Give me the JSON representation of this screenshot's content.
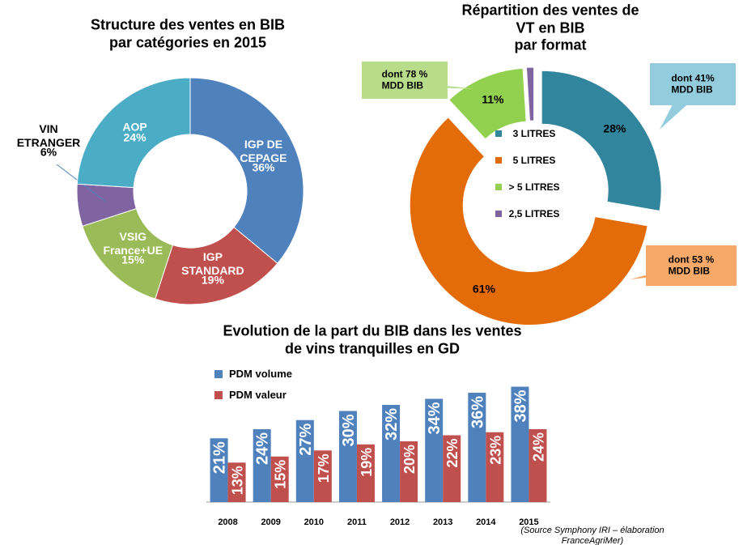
{
  "chart_data": [
    {
      "type": "donut",
      "title": "Structure des ventes en BIB\npar catégories en 2015",
      "categories": [
        "IGP DE\nCEPAGE",
        "IGP\nSTANDARD",
        "VSIG\nFrance+UE",
        "VIN\nETRANGER",
        "AOP"
      ],
      "values": [
        36,
        19,
        15,
        6,
        24
      ],
      "value_labels": [
        "36%",
        "19%",
        "15%",
        "6%",
        "24%"
      ],
      "colors": [
        "#4f81bd",
        "#c0504d",
        "#9bbb59",
        "#8064a2",
        "#4bacc6"
      ]
    },
    {
      "type": "donut",
      "title": "Répartition des ventes de VT en BIB\npar format",
      "categories": [
        "3 LITRES",
        "5 LITRES",
        "> 5 LITRES",
        "2,5 LITRES"
      ],
      "values": [
        28,
        61,
        11,
        1
      ],
      "value_labels": [
        "28%",
        "61%",
        "11%",
        null
      ],
      "colors": [
        "#31859c",
        "#e36c09",
        "#92d050",
        "#8064a2"
      ],
      "exploded": true,
      "annotations": [
        "dont 41%\nMDD BIB",
        "dont 53 %\nMDD BIB",
        "dont 78 %\nMDD BIB"
      ]
    },
    {
      "type": "bar",
      "title": "Evolution de la part du BIB dans les ventes\nde vins tranquilles en GD",
      "categories": [
        "2008",
        "2009",
        "2010",
        "2011",
        "2012",
        "2013",
        "2014",
        "2015"
      ],
      "series": [
        {
          "name": "PDM volume",
          "color": "#4f81bd",
          "values": [
            21,
            24,
            27,
            30,
            32,
            34,
            36,
            38
          ],
          "value_labels": [
            "21%",
            "24%",
            "27%",
            "30%",
            "32%",
            "34%",
            "36%",
            "38%"
          ]
        },
        {
          "name": "PDM valeur",
          "color": "#c0504d",
          "values": [
            13,
            15,
            17,
            19,
            20,
            22,
            23,
            24
          ],
          "value_labels": [
            "13%",
            "15%",
            "17%",
            "19%",
            "20%",
            "22%",
            "23%",
            "24%"
          ]
        }
      ],
      "ylim": [
        0,
        40
      ],
      "legend": "top-left"
    }
  ],
  "source": "(Source Symphony IRI – élaboration FranceAgriMer)"
}
